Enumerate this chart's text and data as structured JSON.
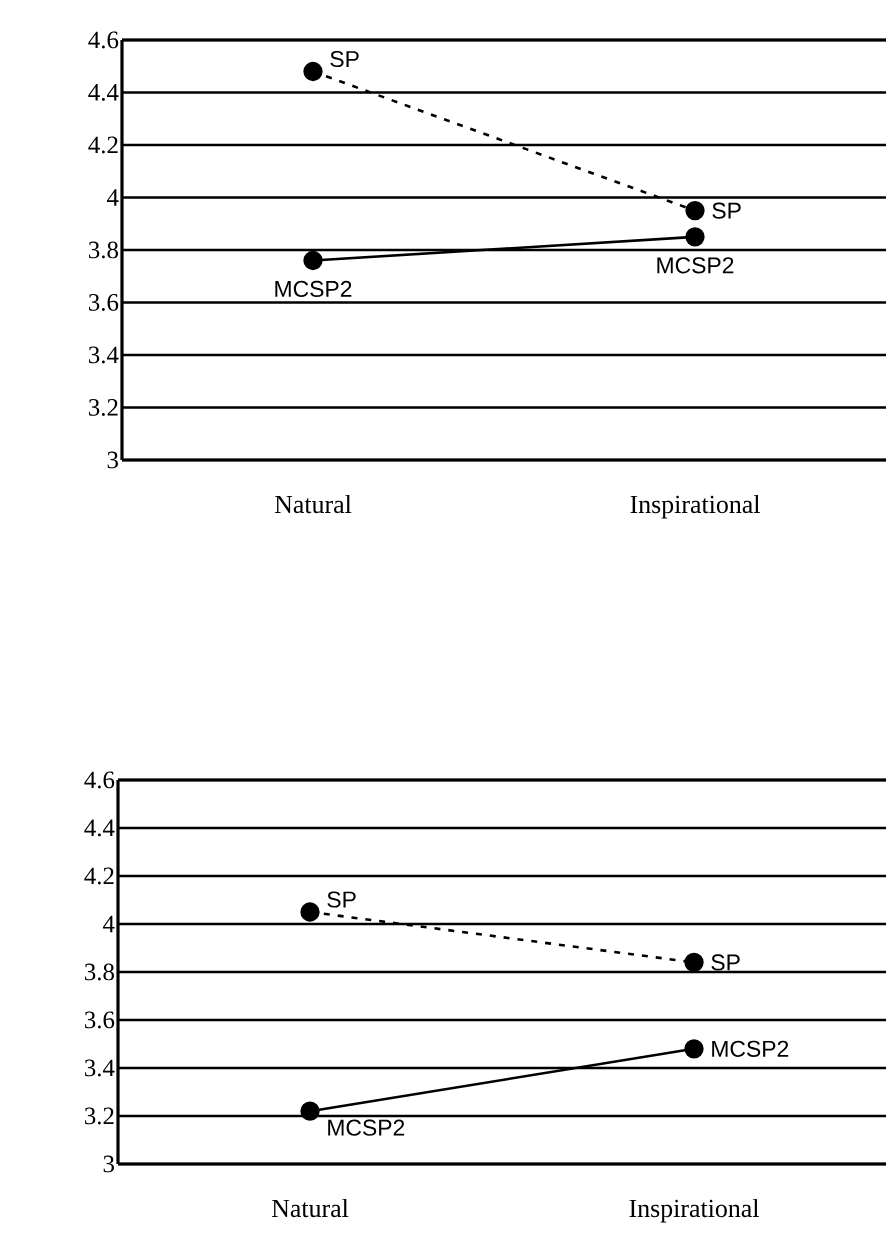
{
  "chart_data": [
    {
      "type": "line",
      "categories": [
        "Natural",
        "Inspirational"
      ],
      "ylim": [
        3,
        4.6
      ],
      "yticks": [
        3,
        3.2,
        3.4,
        3.6,
        3.8,
        4,
        4.2,
        4.4,
        4.6
      ],
      "grid": "y",
      "legend": false,
      "marker": "circle",
      "series": [
        {
          "name": "SP",
          "color": "#000000",
          "line_style": "dashed",
          "values": [
            4.48,
            3.95
          ]
        },
        {
          "name": "MCSP2",
          "color": "#000000",
          "line_style": "solid",
          "values": [
            3.76,
            3.85
          ]
        }
      ]
    },
    {
      "type": "line",
      "categories": [
        "Natural",
        "Inspirational"
      ],
      "ylim": [
        3,
        4.6
      ],
      "yticks": [
        3,
        3.2,
        3.4,
        3.6,
        3.8,
        4,
        4.2,
        4.4,
        4.6
      ],
      "grid": "y",
      "legend": false,
      "marker": "circle",
      "series": [
        {
          "name": "SP",
          "color": "#000000",
          "line_style": "dashed",
          "values": [
            4.05,
            3.84
          ]
        },
        {
          "name": "MCSP2",
          "color": "#000000",
          "line_style": "solid",
          "values": [
            3.22,
            3.48
          ]
        }
      ]
    }
  ]
}
